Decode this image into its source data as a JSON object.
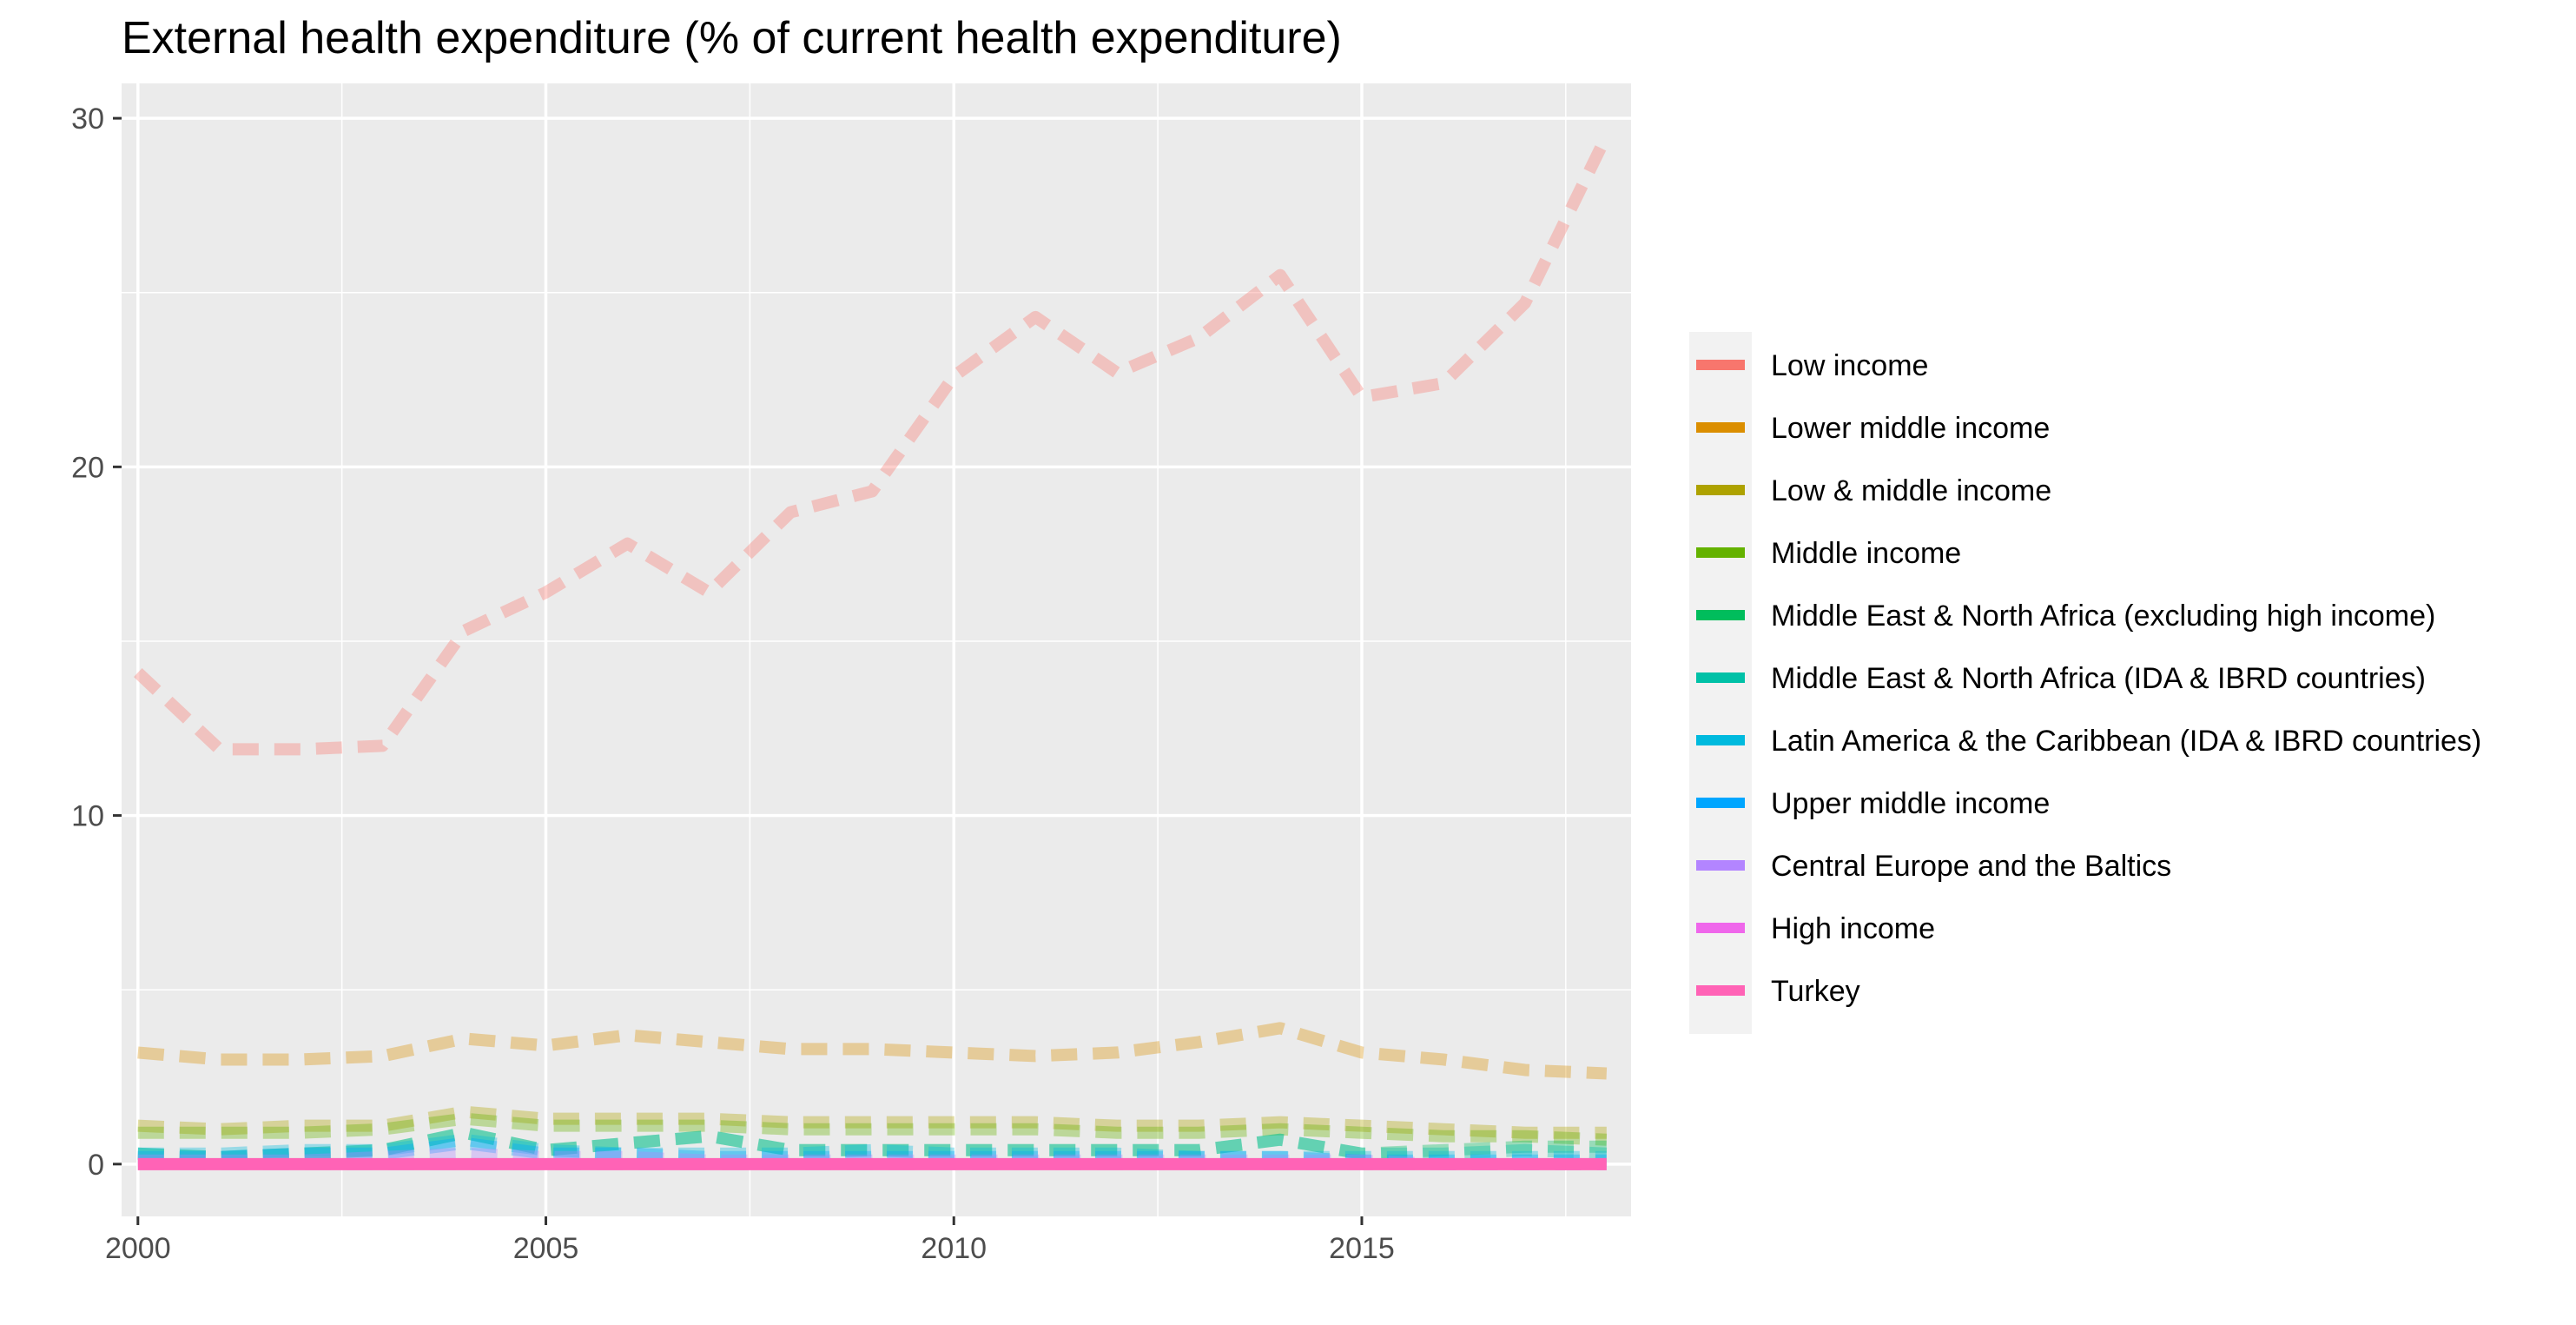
{
  "chart_data": {
    "type": "line",
    "title": "External health expenditure (% of current health expenditure)",
    "xlabel": "",
    "ylabel": "",
    "xlim": [
      1999.8,
      2018.3
    ],
    "ylim": [
      -1.5,
      31
    ],
    "x_ticks": [
      2000,
      2005,
      2010,
      2015
    ],
    "y_ticks": [
      0,
      10,
      20,
      30
    ],
    "grid": true,
    "legend_position": "right",
    "x": [
      2000,
      2001,
      2002,
      2003,
      2004,
      2005,
      2006,
      2007,
      2008,
      2009,
      2010,
      2011,
      2012,
      2013,
      2014,
      2015,
      2016,
      2017,
      2018
    ],
    "series": [
      {
        "name": "Low income",
        "color": "#F8766D",
        "values": [
          14.1,
          11.9,
          11.9,
          12.0,
          15.3,
          16.4,
          17.8,
          16.4,
          18.7,
          19.3,
          22.6,
          24.3,
          22.7,
          23.7,
          25.5,
          22.0,
          22.4,
          24.7,
          29.5
        ]
      },
      {
        "name": "Lower middle income",
        "color": "#DB8E00",
        "values": [
          3.2,
          3.0,
          3.0,
          3.1,
          3.6,
          3.4,
          3.7,
          3.5,
          3.3,
          3.3,
          3.2,
          3.1,
          3.2,
          3.5,
          3.9,
          3.2,
          3.0,
          2.7,
          2.6
        ]
      },
      {
        "name": "Low & middle income",
        "color": "#AEA200",
        "values": [
          1.1,
          1.0,
          1.1,
          1.1,
          1.5,
          1.3,
          1.3,
          1.3,
          1.2,
          1.2,
          1.2,
          1.2,
          1.1,
          1.1,
          1.2,
          1.1,
          1.0,
          0.9,
          0.9
        ]
      },
      {
        "name": "Middle income",
        "color": "#64B200",
        "values": [
          0.9,
          0.9,
          0.9,
          1.0,
          1.3,
          1.1,
          1.1,
          1.1,
          1.0,
          1.0,
          1.0,
          1.0,
          0.9,
          0.9,
          1.0,
          0.9,
          0.8,
          0.8,
          0.7
        ]
      },
      {
        "name": "Middle East & North Africa (excluding high income)",
        "color": "#00BD5C",
        "values": [
          0.3,
          0.2,
          0.3,
          0.4,
          0.9,
          0.4,
          0.6,
          0.8,
          0.4,
          0.4,
          0.4,
          0.4,
          0.4,
          0.4,
          0.7,
          0.3,
          0.4,
          0.5,
          0.5
        ]
      },
      {
        "name": "Middle East & North Africa (IDA & IBRD countries)",
        "color": "#00C1A7",
        "values": [
          0.3,
          0.2,
          0.3,
          0.4,
          0.9,
          0.4,
          0.6,
          0.8,
          0.4,
          0.4,
          0.4,
          0.4,
          0.4,
          0.4,
          0.7,
          0.3,
          0.3,
          0.4,
          0.3
        ]
      },
      {
        "name": "Latin America & the Caribbean (IDA & IBRD countries)",
        "color": "#00BADE",
        "values": [
          0.3,
          0.3,
          0.4,
          0.4,
          0.7,
          0.4,
          0.3,
          0.3,
          0.3,
          0.4,
          0.3,
          0.3,
          0.3,
          0.2,
          0.2,
          0.2,
          0.2,
          0.2,
          0.2
        ]
      },
      {
        "name": "Upper middle income",
        "color": "#00A6FF",
        "values": [
          0.2,
          0.2,
          0.3,
          0.3,
          0.6,
          0.3,
          0.3,
          0.2,
          0.2,
          0.2,
          0.2,
          0.2,
          0.2,
          0.2,
          0.2,
          0.1,
          0.1,
          0.1,
          0.1
        ]
      },
      {
        "name": "Central Europe and the Baltics",
        "color": "#B385FF",
        "values": [
          0.1,
          0.1,
          0.1,
          0.2,
          0.3,
          0.2,
          0.2,
          0.1,
          0.1,
          0.1,
          0.1,
          0.1,
          0.1,
          0.1,
          0.1,
          0.1,
          0.0,
          0.0,
          0.0
        ]
      },
      {
        "name": "High income",
        "color": "#EF67EB",
        "values": [
          0.0,
          0.0,
          0.0,
          0.0,
          0.0,
          0.0,
          0.0,
          0.0,
          0.0,
          0.0,
          0.0,
          0.0,
          0.0,
          0.0,
          0.0,
          0.0,
          0.0,
          0.0,
          0.0
        ]
      },
      {
        "name": "Turkey",
        "color": "#FF63B6",
        "values": [
          0.0,
          0.0,
          0.0,
          0.0,
          0.0,
          0.0,
          0.0,
          0.0,
          0.0,
          0.0,
          0.0,
          0.0,
          0.0,
          0.0,
          0.0,
          0.0,
          0.0,
          0.0,
          0.0
        ]
      }
    ],
    "highlighted_series": "Turkey"
  }
}
